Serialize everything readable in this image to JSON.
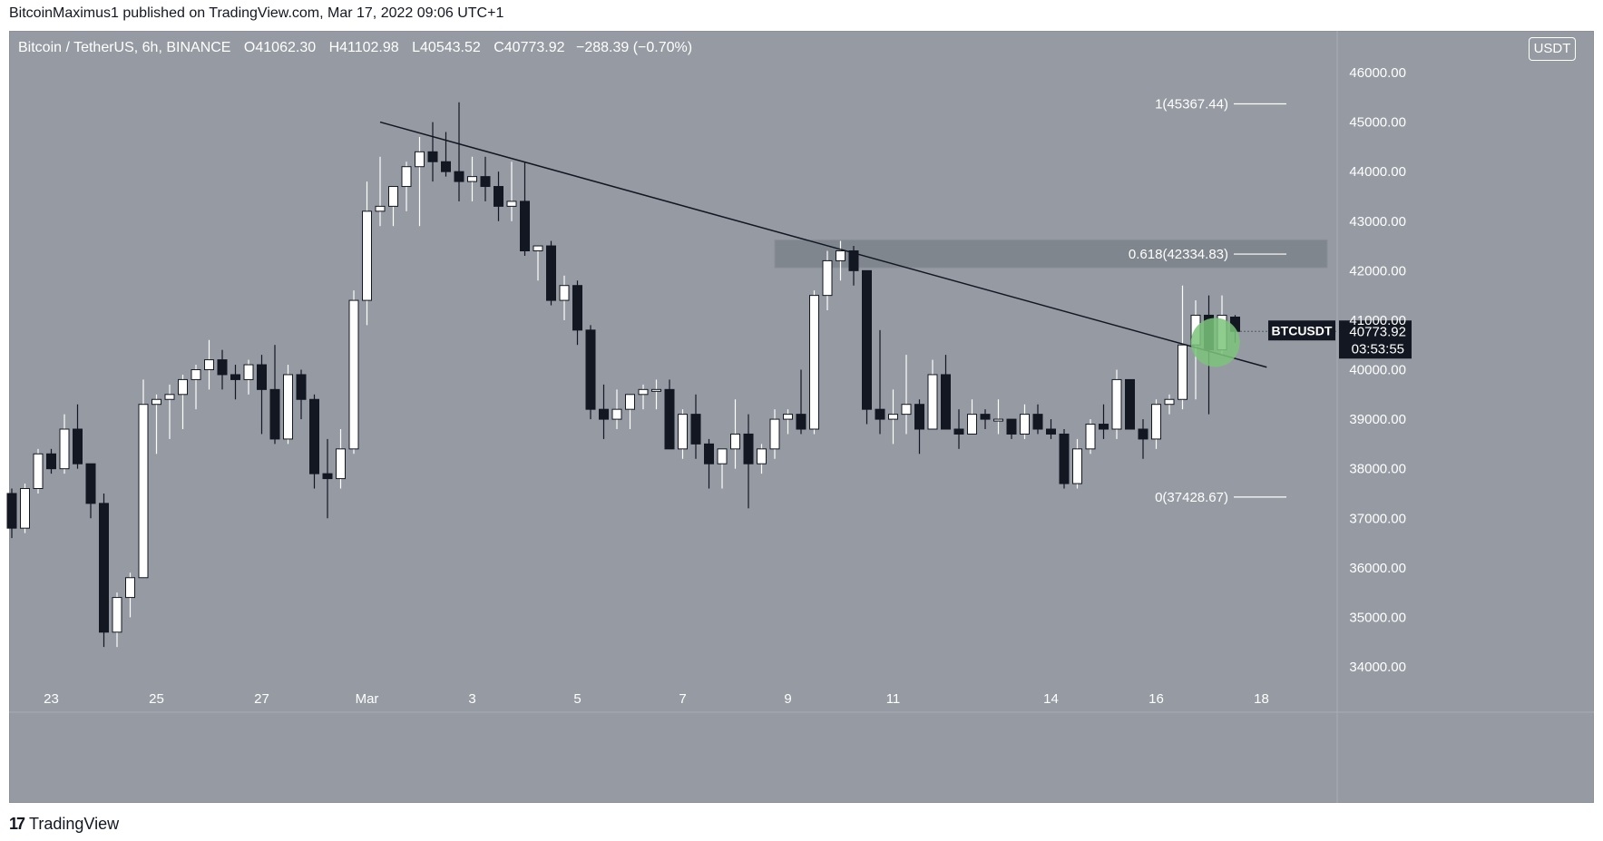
{
  "header": {
    "published": "BitcoinMaximus1 published on TradingView.com, Mar 17, 2022 09:06 UTC+1"
  },
  "legend": {
    "symbol": "Bitcoin / TetherUS, 6h, BINANCE",
    "o_label": "O",
    "o_value": "41062.30",
    "h_label": "H",
    "h_value": "41102.98",
    "l_label": "L",
    "l_value": "40543.52",
    "c_label": "C",
    "c_value": "40773.92",
    "change": "−288.39 (−0.70%)"
  },
  "currency": "USDT",
  "price_tag": {
    "symbol": "BTCUSDT",
    "price": "40773.92",
    "countdown": "03:53:55"
  },
  "footer": {
    "brand": "TradingView",
    "logo_glyph": "17"
  },
  "colors": {
    "background": "#959aa3",
    "up_candle": "#ffffff",
    "down_candle": "#131722",
    "line": "#131722",
    "highlight_zone": "#7d828b",
    "circle": "#7bc47a"
  },
  "chart_data": {
    "type": "candlestick",
    "ylim": [
      33600,
      46600
    ],
    "y_ticks": [
      "34000.00",
      "35000.00",
      "36000.00",
      "37000.00",
      "38000.00",
      "39000.00",
      "40000.00",
      "41000.00",
      "42000.00",
      "43000.00",
      "44000.00",
      "45000.00",
      "46000.00"
    ],
    "x_ticks": [
      {
        "label": "23",
        "i": 3
      },
      {
        "label": "25",
        "i": 11
      },
      {
        "label": "27",
        "i": 19
      },
      {
        "label": "Mar",
        "i": 27
      },
      {
        "label": "3",
        "i": 35
      },
      {
        "label": "5",
        "i": 43
      },
      {
        "label": "7",
        "i": 51
      },
      {
        "label": "9",
        "i": 59
      },
      {
        "label": "11",
        "i": 67
      },
      {
        "label": "14",
        "i": 79
      },
      {
        "label": "16",
        "i": 87
      },
      {
        "label": "18",
        "i": 95
      }
    ],
    "candles": [
      [
        37500,
        37600,
        36600,
        36800
      ],
      [
        36800,
        37700,
        36700,
        37600
      ],
      [
        37600,
        38400,
        37500,
        38300
      ],
      [
        38300,
        38400,
        37900,
        38000
      ],
      [
        38000,
        39100,
        37900,
        38800
      ],
      [
        38800,
        39300,
        38000,
        38100
      ],
      [
        38100,
        38100,
        37000,
        37300
      ],
      [
        37300,
        37500,
        34400,
        34700
      ],
      [
        34700,
        35500,
        34400,
        35400
      ],
      [
        35400,
        35900,
        35000,
        35800
      ],
      [
        35800,
        39800,
        35800,
        39300
      ],
      [
        39300,
        39500,
        38300,
        39400
      ],
      [
        39400,
        39700,
        38600,
        39500
      ],
      [
        39500,
        39900,
        38800,
        39800
      ],
      [
        39800,
        40100,
        39200,
        40000
      ],
      [
        40000,
        40600,
        39600,
        40200
      ],
      [
        40200,
        40400,
        39600,
        39900
      ],
      [
        39900,
        40100,
        39400,
        39800
      ],
      [
        39800,
        40200,
        39500,
        40100
      ],
      [
        40100,
        40300,
        38700,
        39600
      ],
      [
        39600,
        40500,
        38500,
        38600
      ],
      [
        38600,
        40100,
        38500,
        39900
      ],
      [
        39900,
        40000,
        39000,
        39400
      ],
      [
        39400,
        39500,
        37600,
        37900
      ],
      [
        37900,
        38600,
        37000,
        37800
      ],
      [
        37800,
        38800,
        37600,
        38400
      ],
      [
        38400,
        41600,
        38300,
        41400
      ],
      [
        41400,
        43800,
        40900,
        43200
      ],
      [
        43200,
        44300,
        42900,
        43300
      ],
      [
        43300,
        43600,
        42900,
        43700
      ],
      [
        43700,
        44200,
        43200,
        44100
      ],
      [
        44100,
        44700,
        42900,
        44400
      ],
      [
        44400,
        45000,
        43800,
        44200
      ],
      [
        44200,
        44800,
        43900,
        44000
      ],
      [
        44000,
        45400,
        43400,
        43800
      ],
      [
        43800,
        44300,
        43400,
        43900
      ],
      [
        43900,
        44300,
        43400,
        43700
      ],
      [
        43700,
        44000,
        43000,
        43300
      ],
      [
        43300,
        44200,
        43000,
        43400
      ],
      [
        43400,
        44200,
        42300,
        42400
      ],
      [
        42400,
        42500,
        41800,
        42500
      ],
      [
        42500,
        42600,
        41300,
        41400
      ],
      [
        41400,
        41900,
        41000,
        41700
      ],
      [
        41700,
        41800,
        40500,
        40800
      ],
      [
        40800,
        40900,
        39000,
        39200
      ],
      [
        39200,
        39700,
        38600,
        39000
      ],
      [
        39000,
        39600,
        38800,
        39200
      ],
      [
        39200,
        39500,
        38800,
        39500
      ],
      [
        39500,
        39700,
        39200,
        39600
      ],
      [
        39600,
        39800,
        39200,
        39600
      ],
      [
        39600,
        39800,
        38500,
        38400
      ],
      [
        38400,
        39200,
        38200,
        39100
      ],
      [
        39100,
        39500,
        38200,
        38500
      ],
      [
        38500,
        38600,
        37600,
        38100
      ],
      [
        38100,
        38400,
        37600,
        38400
      ],
      [
        38400,
        39400,
        38000,
        38700
      ],
      [
        38700,
        39100,
        37200,
        38100
      ],
      [
        38100,
        38500,
        37900,
        38400
      ],
      [
        38400,
        39200,
        38200,
        39000
      ],
      [
        39000,
        39200,
        38700,
        39100
      ],
      [
        39100,
        40000,
        38700,
        38800
      ],
      [
        38800,
        41600,
        38700,
        41500
      ],
      [
        41500,
        42400,
        41200,
        42200
      ],
      [
        42200,
        42600,
        41800,
        42400
      ],
      [
        42400,
        42500,
        41700,
        42000
      ],
      [
        42000,
        42000,
        38900,
        39200
      ],
      [
        39200,
        40800,
        38700,
        39000
      ],
      [
        39000,
        39600,
        38500,
        39100
      ],
      [
        39100,
        40300,
        38700,
        39300
      ],
      [
        39300,
        39400,
        38300,
        38800
      ],
      [
        38800,
        40200,
        38800,
        39900
      ],
      [
        39900,
        40300,
        38800,
        38800
      ],
      [
        38800,
        39200,
        38400,
        38700
      ],
      [
        38700,
        39400,
        38700,
        39100
      ],
      [
        39100,
        39200,
        38800,
        39000
      ],
      [
        39000,
        39400,
        38700,
        39000
      ],
      [
        39000,
        39000,
        38600,
        38700
      ],
      [
        38700,
        39300,
        38600,
        39100
      ],
      [
        39100,
        39300,
        38700,
        38800
      ],
      [
        38800,
        39000,
        38600,
        38700
      ],
      [
        38700,
        38800,
        37600,
        37700
      ],
      [
        37700,
        38600,
        37600,
        38400
      ],
      [
        38400,
        39000,
        38300,
        38900
      ],
      [
        38900,
        39300,
        38600,
        38800
      ],
      [
        38800,
        40000,
        38600,
        39800
      ],
      [
        39800,
        39800,
        38800,
        38800
      ],
      [
        38800,
        39000,
        38200,
        38600
      ],
      [
        38600,
        39400,
        38400,
        39300
      ],
      [
        39300,
        39500,
        39100,
        39400
      ],
      [
        39400,
        41700,
        39200,
        40500
      ],
      [
        40500,
        41400,
        39400,
        41100
      ],
      [
        41100,
        41500,
        39100,
        40400
      ],
      [
        40400,
        41500,
        40300,
        41100
      ],
      [
        41062.3,
        41102.98,
        40543.52,
        40773.92
      ]
    ],
    "trendline": {
      "start": {
        "i": 28,
        "y": 45000
      },
      "end": {
        "i": 95.4,
        "y": 40050
      }
    },
    "fib_levels": [
      {
        "label": "1(45367.44)",
        "y": 45367.44
      },
      {
        "label": "0.618(42334.83)",
        "y": 42334.83
      },
      {
        "label": "0(37428.67)",
        "y": 37428.67
      }
    ],
    "zone": {
      "i_start": 58,
      "i_end": 100,
      "y_low": 42060,
      "y_high": 42620
    },
    "circle": {
      "i": 91.5,
      "y": 40550
    }
  }
}
